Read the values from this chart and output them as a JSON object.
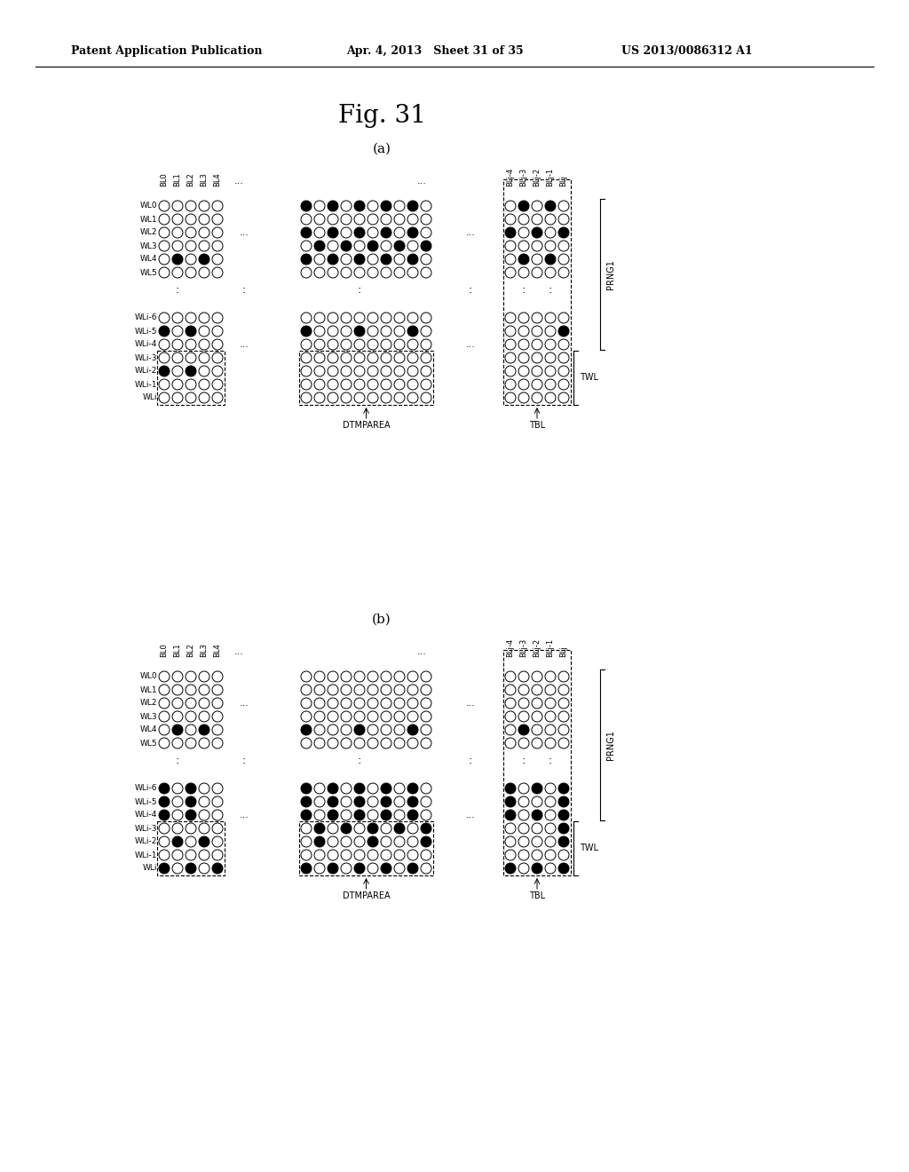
{
  "title": "Fig. 31",
  "header_left": "Patent Application Publication",
  "header_mid": "Apr. 4, 2013   Sheet 31 of 35",
  "header_right": "US 2013/0086312 A1",
  "sub_a_label": "(a)",
  "sub_b_label": "(b)",
  "col_labels_left": [
    "BL0",
    "BL1",
    "BL2",
    "BL3",
    "BL4"
  ],
  "col_labels_right": [
    "BLj-4",
    "BLj-3",
    "BLj-2",
    "BLj-1",
    "BLj"
  ],
  "row_labels_top": [
    "WL0",
    "WL1",
    "WL2",
    "WL3",
    "WL4",
    "WL5"
  ],
  "row_labels_bot": [
    "WLi-6",
    "WLi-5",
    "WLi-4",
    "WLi-3",
    "WLi-2",
    "WLi-1",
    "WLi"
  ],
  "background": "#ffffff",
  "cell_color_empty": "#ffffff",
  "cell_color_filled": "#000000",
  "cell_edge": "#000000",
  "a_top_left": [
    [
      0,
      0,
      0,
      0,
      0
    ],
    [
      0,
      0,
      0,
      0,
      0
    ],
    [
      0,
      0,
      0,
      0,
      0
    ],
    [
      0,
      0,
      0,
      0,
      0
    ],
    [
      0,
      1,
      0,
      1,
      0
    ],
    [
      0,
      0,
      0,
      0,
      0
    ]
  ],
  "a_top_mid": [
    [
      1,
      0,
      1,
      0,
      1,
      0,
      1,
      0,
      1,
      0
    ],
    [
      0,
      0,
      0,
      0,
      0,
      0,
      0,
      0,
      0,
      0
    ],
    [
      1,
      0,
      1,
      0,
      1,
      0,
      1,
      0,
      1,
      0
    ],
    [
      0,
      1,
      0,
      1,
      0,
      1,
      0,
      1,
      0,
      1
    ],
    [
      1,
      0,
      1,
      0,
      1,
      0,
      1,
      0,
      1,
      0
    ],
    [
      0,
      0,
      0,
      0,
      0,
      0,
      0,
      0,
      0,
      0
    ]
  ],
  "a_top_right": [
    [
      0,
      1,
      0,
      1,
      0
    ],
    [
      0,
      0,
      0,
      0,
      0
    ],
    [
      1,
      0,
      1,
      0,
      1
    ],
    [
      0,
      0,
      0,
      0,
      0
    ],
    [
      0,
      1,
      0,
      1,
      0
    ],
    [
      0,
      0,
      0,
      0,
      0
    ]
  ],
  "a_bot_left": [
    [
      0,
      0,
      0,
      0,
      0
    ],
    [
      1,
      0,
      1,
      0,
      0
    ],
    [
      0,
      0,
      0,
      0,
      0
    ],
    [
      0,
      0,
      0,
      0,
      0
    ],
    [
      1,
      0,
      1,
      0,
      0
    ],
    [
      0,
      0,
      0,
      0,
      0
    ],
    [
      0,
      0,
      0,
      0,
      0
    ]
  ],
  "a_bot_mid": [
    [
      0,
      0,
      0,
      0,
      0,
      0,
      0,
      0,
      0,
      0
    ],
    [
      1,
      0,
      0,
      0,
      1,
      0,
      0,
      0,
      1,
      0
    ],
    [
      0,
      0,
      0,
      0,
      0,
      0,
      0,
      0,
      0,
      0
    ],
    [
      0,
      0,
      0,
      0,
      0,
      0,
      0,
      0,
      0,
      0
    ],
    [
      0,
      0,
      0,
      0,
      0,
      0,
      0,
      0,
      0,
      0
    ],
    [
      0,
      0,
      0,
      0,
      0,
      0,
      0,
      0,
      0,
      0
    ],
    [
      0,
      0,
      0,
      0,
      0,
      0,
      0,
      0,
      0,
      0
    ]
  ],
  "a_bot_right": [
    [
      0,
      0,
      0,
      0,
      0
    ],
    [
      0,
      0,
      0,
      0,
      1
    ],
    [
      0,
      0,
      0,
      0,
      0
    ],
    [
      0,
      0,
      0,
      0,
      0
    ],
    [
      0,
      0,
      0,
      0,
      0
    ],
    [
      0,
      0,
      0,
      0,
      0
    ],
    [
      0,
      0,
      0,
      0,
      0
    ]
  ],
  "b_top_left": [
    [
      0,
      0,
      0,
      0,
      0
    ],
    [
      0,
      0,
      0,
      0,
      0
    ],
    [
      0,
      0,
      0,
      0,
      0
    ],
    [
      0,
      0,
      0,
      0,
      0
    ],
    [
      0,
      1,
      0,
      1,
      0
    ],
    [
      0,
      0,
      0,
      0,
      0
    ]
  ],
  "b_top_mid": [
    [
      0,
      0,
      0,
      0,
      0,
      0,
      0,
      0,
      0,
      0
    ],
    [
      0,
      0,
      0,
      0,
      0,
      0,
      0,
      0,
      0,
      0
    ],
    [
      0,
      0,
      0,
      0,
      0,
      0,
      0,
      0,
      0,
      0
    ],
    [
      0,
      0,
      0,
      0,
      0,
      0,
      0,
      0,
      0,
      0
    ],
    [
      1,
      0,
      0,
      0,
      1,
      0,
      0,
      0,
      1,
      0
    ],
    [
      0,
      0,
      0,
      0,
      0,
      0,
      0,
      0,
      0,
      0
    ]
  ],
  "b_top_right": [
    [
      0,
      0,
      0,
      0,
      0
    ],
    [
      0,
      0,
      0,
      0,
      0
    ],
    [
      0,
      0,
      0,
      0,
      0
    ],
    [
      0,
      0,
      0,
      0,
      0
    ],
    [
      0,
      1,
      0,
      0,
      0
    ],
    [
      0,
      0,
      0,
      0,
      0
    ]
  ],
  "b_bot_left": [
    [
      1,
      0,
      1,
      0,
      0
    ],
    [
      1,
      0,
      1,
      0,
      0
    ],
    [
      1,
      0,
      1,
      0,
      0
    ],
    [
      0,
      0,
      0,
      0,
      0
    ],
    [
      0,
      1,
      0,
      1,
      0
    ],
    [
      0,
      0,
      0,
      0,
      0
    ],
    [
      1,
      0,
      1,
      0,
      1
    ]
  ],
  "b_bot_mid": [
    [
      1,
      0,
      1,
      0,
      1,
      0,
      1,
      0,
      1,
      0
    ],
    [
      1,
      0,
      1,
      0,
      1,
      0,
      1,
      0,
      1,
      0
    ],
    [
      1,
      0,
      1,
      0,
      1,
      0,
      1,
      0,
      1,
      0
    ],
    [
      0,
      1,
      0,
      1,
      0,
      1,
      0,
      1,
      0,
      1
    ],
    [
      0,
      1,
      0,
      0,
      0,
      1,
      0,
      0,
      0,
      1
    ],
    [
      0,
      0,
      0,
      0,
      0,
      0,
      0,
      0,
      0,
      0
    ],
    [
      1,
      0,
      1,
      0,
      1,
      0,
      1,
      0,
      1,
      0
    ]
  ],
  "b_bot_right": [
    [
      1,
      0,
      1,
      0,
      1
    ],
    [
      1,
      0,
      0,
      0,
      1
    ],
    [
      1,
      0,
      1,
      0,
      1
    ],
    [
      0,
      0,
      0,
      0,
      1
    ],
    [
      0,
      0,
      0,
      0,
      1
    ],
    [
      0,
      0,
      0,
      0,
      0
    ],
    [
      1,
      0,
      1,
      0,
      1
    ]
  ]
}
